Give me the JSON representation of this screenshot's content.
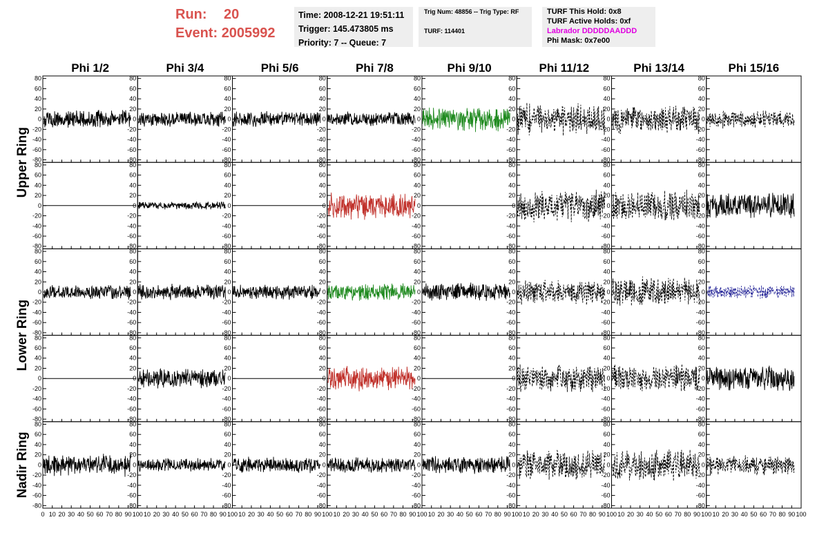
{
  "header": {
    "run_label": "Run:",
    "run_value": "20",
    "event_label": "Event:",
    "event_value": "2005992",
    "time_line": "Time: 2008-12-21 19:51:11",
    "trigger_line": "Trigger: 145.473805 ms",
    "priority_line": "Priority: 7 -- Queue: 7",
    "trig_line": "Trig Num: 48856 -- Trig Type: RF",
    "turf_line": "TURF: 114401",
    "turf_hold": "TURF This Hold: 0x8",
    "turf_active": "TURF Active Holds: 0xf",
    "labrador": "Labrador DDDDDAADDD",
    "phi_mask": "Phi Mask: 0x7e00"
  },
  "columns": [
    "Phi 1/2",
    "Phi 3/4",
    "Phi 5/6",
    "Phi 7/8",
    "Phi 9/10",
    "Phi 11/12",
    "Phi 13/14",
    "Phi 15/16"
  ],
  "ring_labels": [
    "Upper Ring",
    "Lower Ring",
    "Nadir Ring"
  ],
  "colors": {
    "black": "#000000",
    "green": "#1f8a1f",
    "red": "#c0302a",
    "blue": "#2a2a9a",
    "magenta": "#e000e0"
  },
  "chart_data": {
    "type": "line",
    "ylim": [
      -85,
      85
    ],
    "xlim": [
      0,
      100
    ],
    "y_ticks": [
      -80,
      -60,
      -40,
      -20,
      0,
      20,
      40,
      60,
      80
    ],
    "x_ticks": [
      0,
      10,
      20,
      30,
      40,
      50,
      60,
      70,
      80,
      90,
      100
    ],
    "panels": [
      [
        "black",
        "black",
        "black",
        "black",
        "green",
        "dashed",
        "dashed",
        "dashed"
      ],
      [
        "flat",
        "black",
        "flat",
        "red",
        "flat",
        "dashed",
        "dashed",
        "black"
      ],
      [
        "black",
        "black",
        "black",
        "green",
        "black",
        "dashed",
        "dashed",
        "blue"
      ],
      [
        "flat",
        "black",
        "flat",
        "red",
        "flat",
        "dashed",
        "dashed",
        "black"
      ],
      [
        "black",
        "black",
        "black",
        "black",
        "black",
        "dashed",
        "dashed",
        "dashed"
      ]
    ],
    "amplitudes": [
      [
        16,
        13,
        14,
        13,
        22,
        28,
        26,
        16
      ],
      [
        0,
        7,
        0,
        24,
        0,
        30,
        28,
        22
      ],
      [
        13,
        14,
        13,
        15,
        16,
        22,
        26,
        12
      ],
      [
        0,
        18,
        0,
        22,
        0,
        26,
        24,
        22
      ],
      [
        20,
        12,
        14,
        14,
        16,
        26,
        28,
        18
      ]
    ]
  }
}
